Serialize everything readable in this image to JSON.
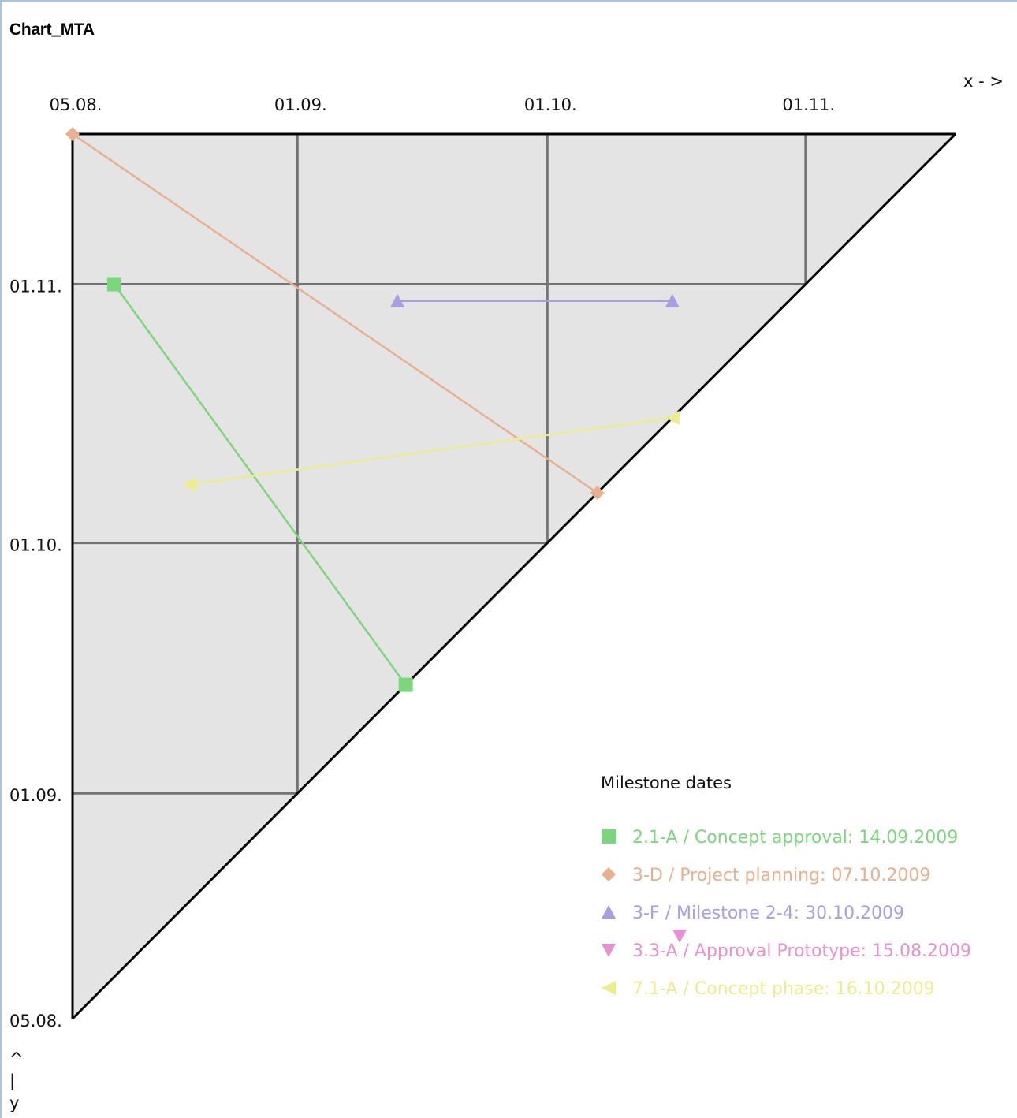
{
  "window": {
    "title": "Chart_MTA"
  },
  "chart_data": {
    "type": "line",
    "title": "Chart_MTA",
    "x_axis": {
      "label": "x - >",
      "ticks": [
        "05.08.",
        "01.09.",
        "01.10.",
        "01.11."
      ],
      "range": [
        "2009-08-05",
        "2009-11-19"
      ]
    },
    "y_axis": {
      "label_lines": [
        "^",
        "|",
        "y"
      ],
      "ticks": [
        "05.08.",
        "01.09.",
        "01.10.",
        "01.11."
      ],
      "range": [
        "2009-08-05",
        "2009-11-19"
      ]
    },
    "grid": true,
    "legend": {
      "title": "Milestone dates",
      "placement": "bottom-right"
    },
    "series": [
      {
        "name": "2.1-A / Concept approval: 14.09.2009",
        "marker": "square",
        "color": "#7dd67d",
        "points": [
          {
            "x": "2009-08-10",
            "y": "2009-11-01"
          },
          {
            "x": "2009-09-14",
            "y": "2009-09-14"
          }
        ]
      },
      {
        "name": "3-D / Project planning: 07.10.2009",
        "marker": "diamond",
        "color": "#e8b08e",
        "points": [
          {
            "x": "2009-08-05",
            "y": "2009-11-19"
          },
          {
            "x": "2009-10-07",
            "y": "2009-10-07"
          }
        ]
      },
      {
        "name": "3-F / Milestone 2-4: 30.10.2009",
        "marker": "triangle-up",
        "color": "#a89ee0",
        "points": [
          {
            "x": "2009-09-13",
            "y": "2009-10-30"
          },
          {
            "x": "2009-10-16",
            "y": "2009-10-30"
          }
        ]
      },
      {
        "name": "3.3-A / Approval Prototype: 15.08.2009",
        "marker": "triangle-down",
        "color": "#e890d0",
        "points": []
      },
      {
        "name": "7.1-A / Concept phase: 16.10.2009",
        "marker": "triangle-left",
        "color": "#ecec90",
        "points": [
          {
            "x": "2009-10-16",
            "y": "2009-10-16"
          },
          {
            "x": "2009-08-19",
            "y": "2009-10-08"
          }
        ]
      }
    ],
    "extra_marker": {
      "series": "3.3-A / Approval Prototype: 15.08.2009",
      "marker": "triangle-down",
      "color": "#e890d0"
    }
  }
}
